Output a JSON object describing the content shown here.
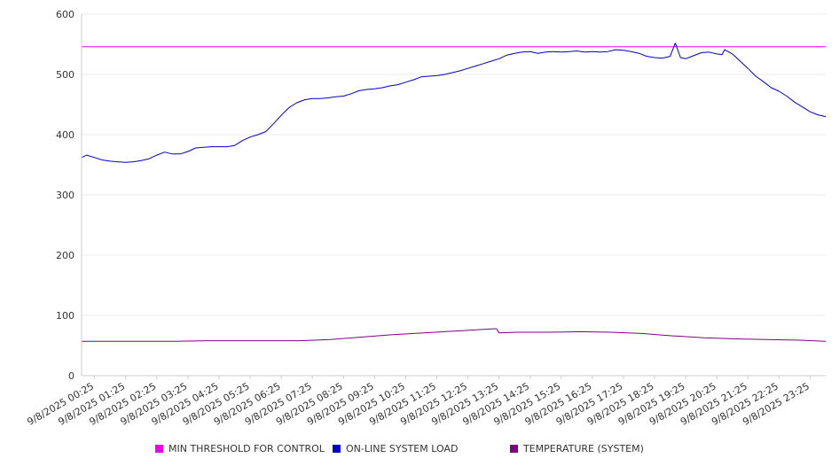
{
  "chart_data": {
    "type": "line",
    "title": "",
    "xlabel": "",
    "ylabel": "",
    "ylim": [
      0,
      600
    ],
    "yticks": [
      0,
      100,
      200,
      300,
      400,
      500,
      600
    ],
    "grid": true,
    "legend_position": "bottom",
    "x_tick_labels": [
      "9/8/2025 00:25",
      "9/8/2025 01:25",
      "9/8/2025 02:25",
      "9/8/2025 03:25",
      "9/8/2025 04:25",
      "9/8/2025 05:25",
      "9/8/2025 06:25",
      "9/8/2025 07:25",
      "9/8/2025 08:25",
      "9/8/2025 09:25",
      "9/8/2025 10:25",
      "9/8/2025 11:25",
      "9/8/2025 12:25",
      "9/8/2025 13:25",
      "9/8/2025 14:25",
      "9/8/2025 15:25",
      "9/8/2025 16:25",
      "9/8/2025 17:25",
      "9/8/2025 18:25",
      "9/8/2025 19:25",
      "9/8/2025 20:25",
      "9/8/2025 21:25",
      "9/8/2025 22:25",
      "9/8/2025 23:25"
    ],
    "series": [
      {
        "name": "MIN THRESHOLD FOR CONTROL",
        "color": "#ee00ee",
        "x": [
          "9/8/2025 00:00",
          "9/8/2025 23:55"
        ],
        "values": [
          546,
          546
        ]
      },
      {
        "name": "ON-LINE SYSTEM LOAD",
        "color": "#0000cc",
        "x": [
          "9/8/2025 00:00",
          "9/8/2025 00:10",
          "9/8/2025 00:25",
          "9/8/2025 00:40",
          "9/8/2025 00:55",
          "9/8/2025 01:10",
          "9/8/2025 01:25",
          "9/8/2025 01:40",
          "9/8/2025 01:55",
          "9/8/2025 02:10",
          "9/8/2025 02:25",
          "9/8/2025 02:40",
          "9/8/2025 02:55",
          "9/8/2025 03:10",
          "9/8/2025 03:25",
          "9/8/2025 03:40",
          "9/8/2025 03:55",
          "9/8/2025 04:10",
          "9/8/2025 04:25",
          "9/8/2025 04:40",
          "9/8/2025 04:55",
          "9/8/2025 05:10",
          "9/8/2025 05:25",
          "9/8/2025 05:40",
          "9/8/2025 05:55",
          "9/8/2025 06:10",
          "9/8/2025 06:25",
          "9/8/2025 06:40",
          "9/8/2025 06:55",
          "9/8/2025 07:10",
          "9/8/2025 07:25",
          "9/8/2025 07:40",
          "9/8/2025 07:55",
          "9/8/2025 08:10",
          "9/8/2025 08:25",
          "9/8/2025 08:40",
          "9/8/2025 08:55",
          "9/8/2025 09:10",
          "9/8/2025 09:25",
          "9/8/2025 09:40",
          "9/8/2025 09:55",
          "9/8/2025 10:10",
          "9/8/2025 10:25",
          "9/8/2025 10:40",
          "9/8/2025 10:55",
          "9/8/2025 11:10",
          "9/8/2025 11:25",
          "9/8/2025 11:40",
          "9/8/2025 11:55",
          "9/8/2025 12:10",
          "9/8/2025 12:25",
          "9/8/2025 12:40",
          "9/8/2025 12:55",
          "9/8/2025 13:10",
          "9/8/2025 13:25",
          "9/8/2025 13:40",
          "9/8/2025 13:55",
          "9/8/2025 14:10",
          "9/8/2025 14:25",
          "9/8/2025 14:40",
          "9/8/2025 14:55",
          "9/8/2025 15:10",
          "9/8/2025 15:25",
          "9/8/2025 15:40",
          "9/8/2025 15:55",
          "9/8/2025 16:10",
          "9/8/2025 16:25",
          "9/8/2025 16:40",
          "9/8/2025 16:55",
          "9/8/2025 17:10",
          "9/8/2025 17:25",
          "9/8/2025 17:40",
          "9/8/2025 17:55",
          "9/8/2025 18:10",
          "9/8/2025 18:25",
          "9/8/2025 18:40",
          "9/8/2025 18:55",
          "9/8/2025 19:05",
          "9/8/2025 19:15",
          "9/8/2025 19:25",
          "9/8/2025 19:40",
          "9/8/2025 19:55",
          "9/8/2025 20:10",
          "9/8/2025 20:25",
          "9/8/2025 20:35",
          "9/8/2025 20:40",
          "9/8/2025 20:55",
          "9/8/2025 21:10",
          "9/8/2025 21:25",
          "9/8/2025 21:40",
          "9/8/2025 21:55",
          "9/8/2025 22:10",
          "9/8/2025 22:25",
          "9/8/2025 22:40",
          "9/8/2025 22:55",
          "9/8/2025 23:10",
          "9/8/2025 23:25",
          "9/8/2025 23:40",
          "9/8/2025 23:55"
        ],
        "values": [
          362,
          366,
          362,
          358,
          356,
          355,
          354,
          355,
          357,
          360,
          366,
          371,
          368,
          368,
          372,
          378,
          379,
          380,
          380,
          380,
          382,
          390,
          396,
          400,
          405,
          418,
          432,
          445,
          453,
          458,
          460,
          460,
          461,
          463,
          464,
          468,
          473,
          475,
          476,
          478,
          481,
          483,
          487,
          491,
          496,
          497,
          498,
          500,
          503,
          506,
          510,
          514,
          518,
          522,
          526,
          532,
          535,
          537,
          538,
          535,
          537,
          538,
          537,
          538,
          539,
          537,
          538,
          537,
          538,
          541,
          540,
          538,
          535,
          530,
          528,
          527,
          530,
          552,
          528,
          526,
          531,
          536,
          537,
          534,
          533,
          541,
          534,
          522,
          510,
          497,
          488,
          478,
          472,
          464,
          454,
          446,
          438,
          433,
          430
        ]
      },
      {
        "name": "TEMPERATURE (SYSTEM)",
        "color": "#800080",
        "x": [
          "9/8/2025 00:00",
          "9/8/2025 01:00",
          "9/8/2025 02:00",
          "9/8/2025 03:00",
          "9/8/2025 04:00",
          "9/8/2025 05:00",
          "9/8/2025 06:00",
          "9/8/2025 07:00",
          "9/8/2025 08:00",
          "9/8/2025 09:00",
          "9/8/2025 10:00",
          "9/8/2025 11:00",
          "9/8/2025 12:00",
          "9/8/2025 13:00",
          "9/8/2025 13:20",
          "9/8/2025 13:25",
          "9/8/2025 14:00",
          "9/8/2025 15:00",
          "9/8/2025 16:00",
          "9/8/2025 17:00",
          "9/8/2025 18:00",
          "9/8/2025 19:00",
          "9/8/2025 20:00",
          "9/8/2025 21:00",
          "9/8/2025 22:00",
          "9/8/2025 23:00",
          "9/8/2025 23:55"
        ],
        "values": [
          57,
          57,
          57,
          57,
          58,
          58,
          58,
          58,
          60,
          64,
          68,
          71,
          74,
          77,
          78,
          71,
          72,
          72,
          73,
          72,
          70,
          66,
          63,
          61,
          60,
          59,
          57
        ]
      }
    ]
  }
}
